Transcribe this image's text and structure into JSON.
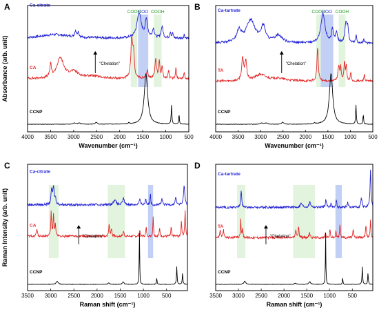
{
  "colors": {
    "ca_complex": "#1f1fd6",
    "ligand": "#e32424",
    "ccnp": "#000000",
    "cooh_band": "#d8f0d2",
    "coo_band": "#b9c8f3",
    "cooh_text": "#1f9a1f",
    "coo_text": "#2233cc"
  },
  "chart_data": [
    {
      "panel": "A",
      "type": "line",
      "xlabel": "Wavenumber (cm⁻¹)",
      "ylabel": "Absorbance (arb. unit)",
      "xlim": [
        4000,
        500
      ],
      "xticks": [
        "4000",
        "3500",
        "3000",
        "2500",
        "2000",
        "1500",
        "1000",
        "500"
      ],
      "bands": [
        {
          "label": "COOH",
          "from": 1760,
          "to": 1620,
          "kind": "cooh"
        },
        {
          "label": "COO",
          "from": 1600,
          "to": 1380,
          "kind": "coo"
        },
        {
          "label": "COOH",
          "from": 1260,
          "to": 1090,
          "kind": "cooh"
        }
      ],
      "annotation": "\"Chelation\"",
      "series": [
        {
          "name": "Ca-citrate",
          "color_key": "ca_complex",
          "baseline": 0.74,
          "features": [
            [
              3400,
              0.03,
              380
            ],
            [
              2960,
              0.05,
              20
            ],
            [
              2900,
              0.04,
              20
            ],
            [
              1580,
              0.2,
              55
            ],
            [
              1420,
              0.14,
              30
            ],
            [
              1270,
              0.07,
              25
            ],
            [
              1080,
              0.09,
              25
            ],
            [
              900,
              0.05,
              15
            ],
            [
              850,
              0.04,
              12
            ],
            [
              600,
              0.03,
              12
            ]
          ]
        },
        {
          "name": "CA",
          "color_key": "ligand",
          "baseline": 0.42,
          "features": [
            [
              3500,
              0.1,
              20
            ],
            [
              3290,
              0.16,
              90
            ],
            [
              3000,
              0.05,
              120
            ],
            [
              2600,
              0.02,
              200
            ],
            [
              1740,
              0.3,
              22
            ],
            [
              1700,
              0.2,
              20
            ],
            [
              1400,
              0.06,
              20
            ],
            [
              1220,
              0.15,
              22
            ],
            [
              1140,
              0.13,
              15
            ],
            [
              1080,
              0.1,
              15
            ],
            [
              940,
              0.07,
              12
            ],
            [
              780,
              0.09,
              12
            ],
            [
              600,
              0.05,
              12
            ]
          ]
        },
        {
          "name": "CCNP",
          "color_key": "ccnp",
          "baseline": 0.06,
          "features": [
            [
              2980,
              0.01,
              30
            ],
            [
              2880,
              0.01,
              30
            ],
            [
              2510,
              0.015,
              25
            ],
            [
              1800,
              0.01,
              15
            ],
            [
              1430,
              0.4,
              45
            ],
            [
              875,
              0.15,
              9
            ],
            [
              712,
              0.08,
              8
            ]
          ]
        }
      ]
    },
    {
      "panel": "B",
      "type": "line",
      "xlabel": "Wavenumber (cm⁻¹)",
      "ylabel": "",
      "xlim": [
        4000,
        500
      ],
      "xticks": [
        "4000",
        "3500",
        "3000",
        "2500",
        "2000",
        "1500",
        "1000",
        "500"
      ],
      "bands": [
        {
          "label": "COOH",
          "from": 1760,
          "to": 1660,
          "kind": "cooh"
        },
        {
          "label": "COO",
          "from": 1660,
          "to": 1380,
          "kind": "coo"
        },
        {
          "label": "COOH",
          "from": 1260,
          "to": 1110,
          "kind": "cooh"
        }
      ],
      "annotation": "\"Chelation\"",
      "series": [
        {
          "name": "Ca-tartrate",
          "color_key": "ca_complex",
          "baseline": 0.7,
          "features": [
            [
              3480,
              0.09,
              60
            ],
            [
              3220,
              0.18,
              120
            ],
            [
              2940,
              0.12,
              60
            ],
            [
              2600,
              0.06,
              100
            ],
            [
              1610,
              0.23,
              55
            ],
            [
              1400,
              0.1,
              25
            ],
            [
              1310,
              0.08,
              25
            ],
            [
              1100,
              0.15,
              25
            ],
            [
              1060,
              0.12,
              20
            ],
            [
              870,
              0.06,
              15
            ],
            [
              700,
              0.04,
              12
            ]
          ]
        },
        {
          "name": "TA",
          "color_key": "ligand",
          "baseline": 0.4,
          "features": [
            [
              3400,
              0.17,
              25
            ],
            [
              3330,
              0.15,
              25
            ],
            [
              3000,
              0.05,
              150
            ],
            [
              2600,
              0.02,
              200
            ],
            [
              1730,
              0.26,
              18
            ],
            [
              1260,
              0.12,
              20
            ],
            [
              1215,
              0.1,
              15
            ],
            [
              1130,
              0.15,
              15
            ],
            [
              1090,
              0.12,
              12
            ],
            [
              990,
              0.07,
              12
            ],
            [
              690,
              0.06,
              12
            ]
          ]
        },
        {
          "name": "CCNP",
          "color_key": "ccnp",
          "baseline": 0.06,
          "features": [
            [
              2980,
              0.01,
              30
            ],
            [
              2880,
              0.01,
              30
            ],
            [
              2510,
              0.015,
              25
            ],
            [
              1800,
              0.01,
              15
            ],
            [
              1430,
              0.4,
              45
            ],
            [
              875,
              0.15,
              9
            ],
            [
              712,
              0.08,
              8
            ]
          ]
        }
      ]
    },
    {
      "panel": "C",
      "type": "line",
      "xlabel": "Raman shift (cm⁻¹)",
      "ylabel": "Raman Intensity (arb. unit)",
      "xlim": [
        3500,
        50
      ],
      "xticks": [
        "3500",
        "3000",
        "2500",
        "2000",
        "1500",
        "1000",
        "500"
      ],
      "bands": [
        {
          "label": "",
          "from": 3040,
          "to": 2830,
          "kind": "cooh"
        },
        {
          "label": "",
          "from": 1770,
          "to": 1400,
          "kind": "cooh"
        },
        {
          "label": "",
          "from": 900,
          "to": 790,
          "kind": "coo"
        }
      ],
      "annotation": "\"Chelation\"",
      "series": [
        {
          "name": "Ca-citrate",
          "color_key": "ca_complex",
          "baseline": 0.68,
          "features": [
            [
              2980,
              0.12,
              15
            ],
            [
              2940,
              0.14,
              15
            ],
            [
              2900,
              0.05,
              15
            ],
            [
              1620,
              0.04,
              30
            ],
            [
              1430,
              0.05,
              20
            ],
            [
              1080,
              0.04,
              15
            ],
            [
              950,
              0.05,
              12
            ],
            [
              850,
              0.1,
              8
            ],
            [
              600,
              0.05,
              12
            ],
            [
              300,
              0.06,
              15
            ],
            [
              120,
              0.16,
              15
            ]
          ]
        },
        {
          "name": "CA",
          "color_key": "ligand",
          "baseline": 0.43,
          "features": [
            [
              3300,
              0.05,
              15
            ],
            [
              2990,
              0.19,
              10
            ],
            [
              2940,
              0.18,
              10
            ],
            [
              2900,
              0.1,
              10
            ],
            [
              1740,
              0.09,
              12
            ],
            [
              1690,
              0.06,
              12
            ],
            [
              1430,
              0.04,
              12
            ],
            [
              1080,
              0.05,
              10
            ],
            [
              940,
              0.07,
              10
            ],
            [
              790,
              0.16,
              8
            ],
            [
              650,
              0.06,
              10
            ],
            [
              400,
              0.07,
              10
            ],
            [
              180,
              0.12,
              10
            ],
            [
              100,
              0.2,
              10
            ]
          ]
        },
        {
          "name": "CCNP",
          "color_key": "ccnp",
          "baseline": 0.05,
          "features": [
            [
              2860,
              0.025,
              25
            ],
            [
              1750,
              0.01,
              20
            ],
            [
              1435,
              0.02,
              20
            ],
            [
              1086,
              0.42,
              6
            ],
            [
              712,
              0.06,
              6
            ],
            [
              280,
              0.14,
              8
            ],
            [
              155,
              0.09,
              8
            ]
          ]
        }
      ]
    },
    {
      "panel": "D",
      "type": "line",
      "xlabel": "Raman shift (cm⁻¹)",
      "ylabel": "",
      "xlim": [
        3500,
        50
      ],
      "xticks": [
        "3500",
        "3000",
        "2500",
        "2000",
        "1500",
        "1000",
        "500"
      ],
      "bands": [
        {
          "label": "",
          "from": 3030,
          "to": 2850,
          "kind": "cooh"
        },
        {
          "label": "",
          "from": 1800,
          "to": 1320,
          "kind": "cooh"
        },
        {
          "label": "",
          "from": 870,
          "to": 730,
          "kind": "coo"
        }
      ],
      "annotation": "\"Chelation\"",
      "series": [
        {
          "name": "Ca-tartrate",
          "color_key": "ca_complex",
          "baseline": 0.66,
          "features": [
            [
              2940,
              0.14,
              12
            ],
            [
              1620,
              0.03,
              25
            ],
            [
              1430,
              0.04,
              20
            ],
            [
              1080,
              0.06,
              15
            ],
            [
              970,
              0.03,
              12
            ],
            [
              850,
              0.07,
              8
            ],
            [
              600,
              0.04,
              12
            ],
            [
              300,
              0.07,
              15
            ],
            [
              100,
              0.3,
              12
            ]
          ]
        },
        {
          "name": "TA",
          "color_key": "ligand",
          "baseline": 0.42,
          "features": [
            [
              3400,
              0.06,
              12
            ],
            [
              3330,
              0.06,
              12
            ],
            [
              2950,
              0.15,
              8
            ],
            [
              2910,
              0.08,
              8
            ],
            [
              1740,
              0.06,
              12
            ],
            [
              1680,
              0.09,
              10
            ],
            [
              1440,
              0.04,
              12
            ],
            [
              1090,
              0.04,
              10
            ],
            [
              990,
              0.07,
              8
            ],
            [
              860,
              0.05,
              8
            ],
            [
              770,
              0.12,
              8
            ],
            [
              480,
              0.06,
              10
            ],
            [
              200,
              0.1,
              10
            ],
            [
              100,
              0.14,
              10
            ]
          ]
        },
        {
          "name": "CCNP",
          "color_key": "ccnp",
          "baseline": 0.05,
          "features": [
            [
              2860,
              0.025,
              25
            ],
            [
              1750,
              0.01,
              20
            ],
            [
              1435,
              0.02,
              20
            ],
            [
              1086,
              0.42,
              6
            ],
            [
              712,
              0.06,
              6
            ],
            [
              280,
              0.14,
              8
            ],
            [
              155,
              0.09,
              8
            ]
          ]
        }
      ]
    }
  ]
}
